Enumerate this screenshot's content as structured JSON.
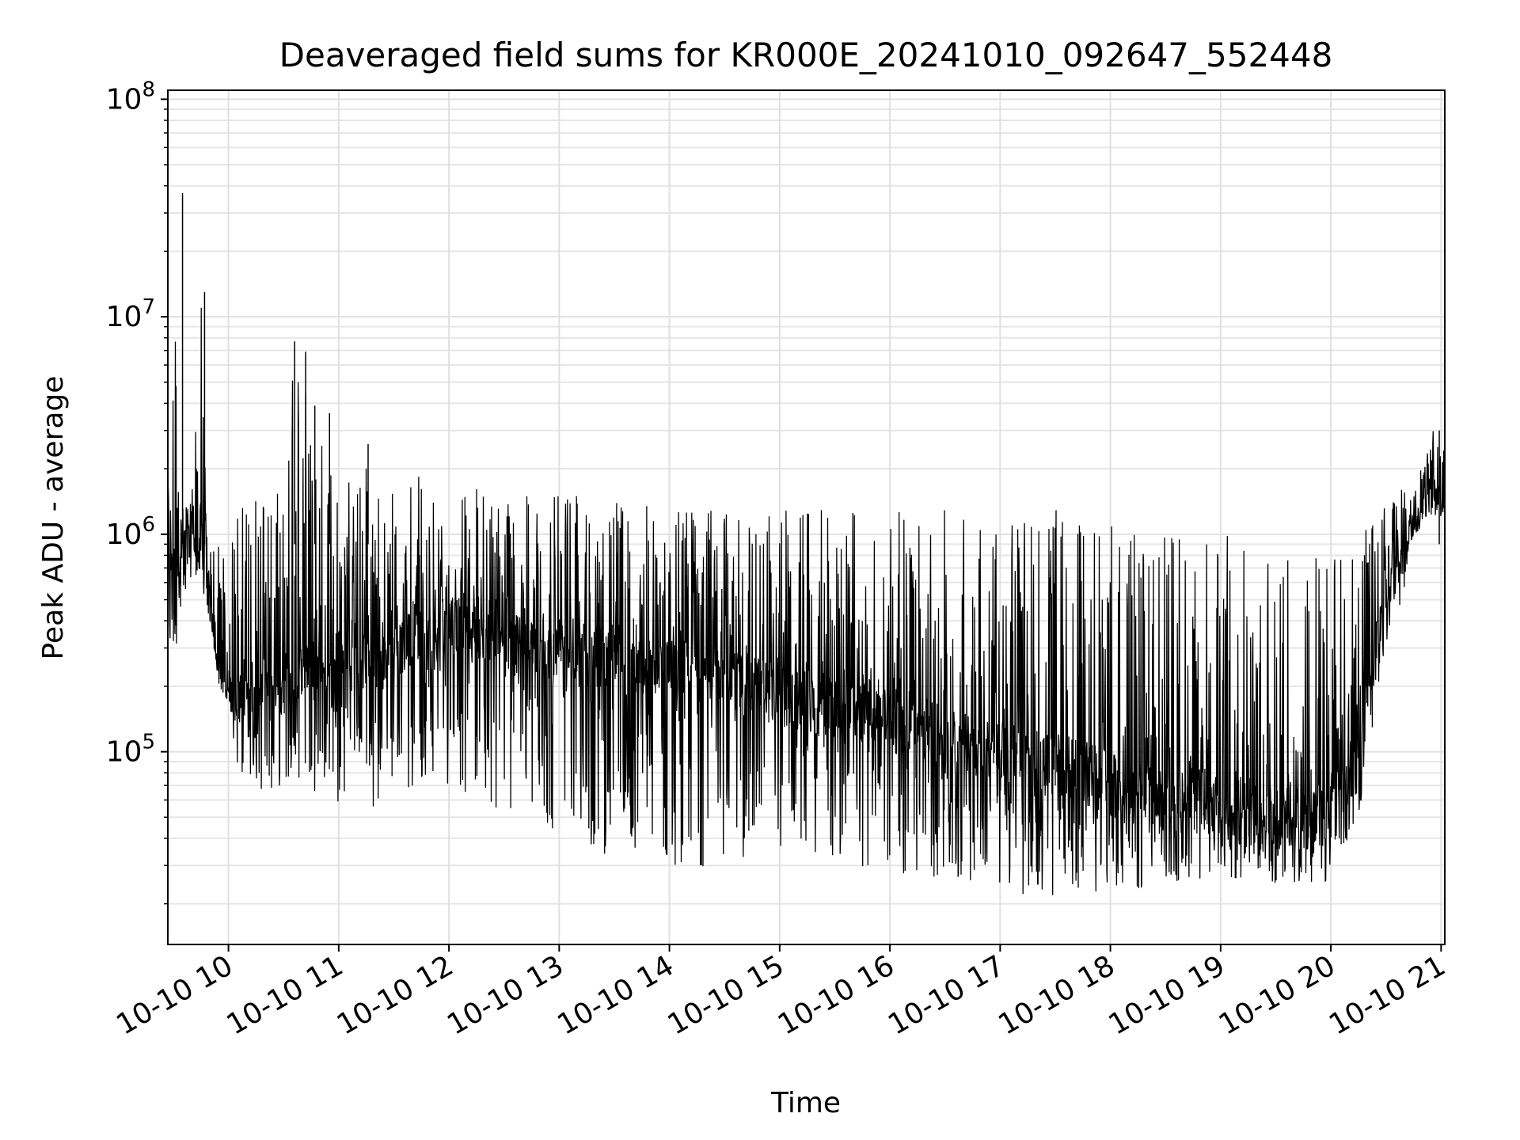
{
  "chart_data": {
    "type": "line",
    "title": "Deaveraged field sums for KR000E_20241010_092647_552448",
    "xlabel": "Time",
    "ylabel": "Peak ADU - average",
    "yscale": "log",
    "ylim": [
      13000,
      110000000
    ],
    "xlim": [
      "2024-10-10 09:27",
      "2024-10-10 21:02"
    ],
    "grid": "on (major and minor)",
    "line_color": "#000000",
    "x_ticks": [
      "10-10 10",
      "10-10 11",
      "10-10 12",
      "10-10 13",
      "10-10 14",
      "10-10 15",
      "10-10 16",
      "10-10 17",
      "10-10 18",
      "10-10 19",
      "10-10 20",
      "10-10 21"
    ],
    "y_ticks": [
      {
        "base": "10",
        "exp": "5",
        "value": 100000
      },
      {
        "base": "10",
        "exp": "6",
        "value": 1000000
      },
      {
        "base": "10",
        "exp": "7",
        "value": 10000000
      },
      {
        "base": "10",
        "exp": "8",
        "value": 100000000
      }
    ],
    "series": [
      {
        "x": [
          "2024-10-10 09:27",
          "2024-10-10 09:30",
          "2024-10-10 09:33",
          "2024-10-10 09:36",
          "2024-10-10 09:40",
          "2024-10-10 09:45",
          "2024-10-10 09:50",
          "2024-10-10 09:55",
          "2024-10-10 10:00",
          "2024-10-10 10:05",
          "2024-10-10 10:10",
          "2024-10-10 10:20",
          "2024-10-10 10:30",
          "2024-10-10 10:36",
          "2024-10-10 10:40",
          "2024-10-10 10:45",
          "2024-10-10 10:50",
          "2024-10-10 11:00",
          "2024-10-10 11:10",
          "2024-10-10 11:20",
          "2024-10-10 11:30",
          "2024-10-10 11:40",
          "2024-10-10 11:50",
          "2024-10-10 12:00",
          "2024-10-10 12:15",
          "2024-10-10 12:30",
          "2024-10-10 12:45",
          "2024-10-10 13:00",
          "2024-10-10 13:15",
          "2024-10-10 13:30",
          "2024-10-10 13:45",
          "2024-10-10 14:00",
          "2024-10-10 14:15",
          "2024-10-10 14:30",
          "2024-10-10 14:45",
          "2024-10-10 15:00",
          "2024-10-10 15:15",
          "2024-10-10 15:30",
          "2024-10-10 15:45",
          "2024-10-10 16:00",
          "2024-10-10 16:15",
          "2024-10-10 16:30",
          "2024-10-10 16:45",
          "2024-10-10 17:00",
          "2024-10-10 17:15",
          "2024-10-10 17:30",
          "2024-10-10 17:45",
          "2024-10-10 18:00",
          "2024-10-10 18:15",
          "2024-10-10 18:30",
          "2024-10-10 18:45",
          "2024-10-10 19:00",
          "2024-10-10 19:15",
          "2024-10-10 19:30",
          "2024-10-10 19:45",
          "2024-10-10 20:00",
          "2024-10-10 20:15",
          "2024-10-10 20:30",
          "2024-10-10 20:40",
          "2024-10-10 20:50",
          "2024-10-10 20:55",
          "2024-10-10 21:00"
        ],
        "y_high": [
          1300000,
          37000000,
          1200000,
          1400000,
          1500000,
          13000000,
          900000,
          1000000,
          700000,
          1400000,
          1600000,
          1700000,
          1500000,
          7700000,
          6900000,
          3900000,
          3600000,
          1600000,
          2600000,
          1800000,
          1600000,
          2000000,
          1900000,
          1800000,
          1700000,
          1500000,
          1500000,
          1500000,
          1500000,
          1400000,
          1400000,
          1400000,
          1300000,
          1300000,
          1300000,
          1300000,
          1300000,
          1300000,
          1300000,
          1300000,
          1300000,
          1300000,
          1200000,
          1200000,
          1300000,
          1300000,
          1200000,
          1100000,
          1000000,
          1000000,
          1000000,
          1000000,
          1000000,
          900000,
          900000,
          800000,
          1000000,
          1800000,
          1700000,
          2100000,
          3000000,
          3000000
        ],
        "y_low": [
          280000,
          260000,
          300000,
          350000,
          500000,
          600000,
          400000,
          200000,
          170000,
          80000,
          70000,
          65000,
          70000,
          75000,
          75000,
          70000,
          60000,
          55000,
          65000,
          50000,
          80000,
          60000,
          80000,
          70000,
          60000,
          50000,
          50000,
          40000,
          35000,
          33000,
          32000,
          30000,
          30000,
          28000,
          30000,
          32000,
          32000,
          30000,
          28000,
          27000,
          26000,
          25000,
          24000,
          22000,
          22000,
          21000,
          22000,
          22000,
          23000,
          24000,
          25000,
          25000,
          25000,
          24000,
          25000,
          25000,
          50000,
          300000,
          500000,
          1200000,
          1200000,
          1200000
        ],
        "y_typical": [
          700000,
          900000,
          650000,
          850000,
          900000,
          1000000,
          400000,
          250000,
          200000,
          180000,
          200000,
          220000,
          230000,
          250000,
          230000,
          230000,
          220000,
          200000,
          250000,
          280000,
          300000,
          350000,
          350000,
          400000,
          380000,
          350000,
          300000,
          300000,
          280000,
          250000,
          250000,
          230000,
          230000,
          220000,
          200000,
          180000,
          170000,
          160000,
          150000,
          140000,
          130000,
          120000,
          110000,
          100000,
          100000,
          90000,
          80000,
          70000,
          65000,
          60000,
          60000,
          55000,
          55000,
          50000,
          50000,
          50000,
          100000,
          600000,
          900000,
          1500000,
          1600000,
          1600000
        ]
      }
    ]
  }
}
